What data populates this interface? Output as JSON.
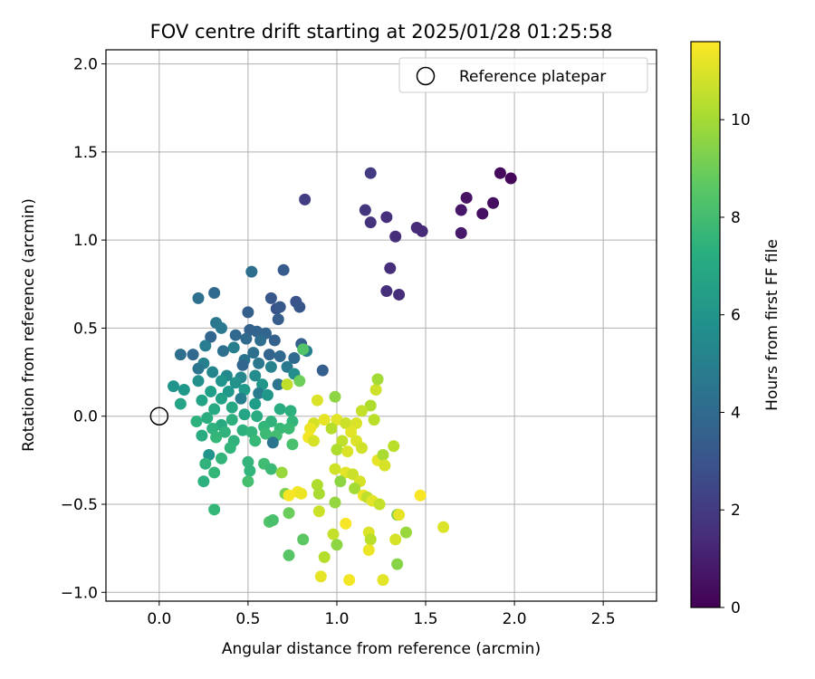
{
  "chart_data": {
    "type": "scatter",
    "title": "FOV centre drift starting at 2025/01/28 01:25:58",
    "xlabel": "Angular distance from reference (arcmin)",
    "ylabel": "Rotation from reference (arcmin)",
    "xlim": [
      -0.3,
      2.8
    ],
    "ylim": [
      -1.05,
      2.08
    ],
    "xticks": [
      0.0,
      0.5,
      1.0,
      1.5,
      2.0,
      2.5
    ],
    "xtick_labels": [
      "0.0",
      "0.5",
      "1.0",
      "1.5",
      "2.0",
      "2.5"
    ],
    "yticks": [
      -1.0,
      -0.5,
      0.0,
      0.5,
      1.0,
      1.5,
      2.0
    ],
    "ytick_labels": [
      "−1.0",
      "−0.5",
      "0.0",
      "0.5",
      "1.0",
      "1.5",
      "2.0"
    ],
    "grid": true,
    "legend": {
      "position": "top-right",
      "entries": [
        "Reference platepar"
      ]
    },
    "reference_point": {
      "x": 0.0,
      "y": 0.0,
      "marker": "open-circle",
      "label": "Reference platepar"
    },
    "colorbar": {
      "label": "Hours from first FF file",
      "colormap": "viridis",
      "range": [
        0,
        11.6
      ],
      "ticks": [
        0,
        2,
        4,
        6,
        8,
        10
      ],
      "tick_labels": [
        "0",
        "2",
        "4",
        "6",
        "8",
        "10"
      ]
    },
    "series": [
      {
        "name": "FOV centre",
        "points": [
          {
            "x": 1.92,
            "y": 1.38,
            "t": 0.3
          },
          {
            "x": 1.98,
            "y": 1.35,
            "t": 0.2
          },
          {
            "x": 1.88,
            "y": 1.21,
            "t": 0.4
          },
          {
            "x": 1.73,
            "y": 1.24,
            "t": 0.6
          },
          {
            "x": 1.82,
            "y": 1.15,
            "t": 0.5
          },
          {
            "x": 1.7,
            "y": 1.17,
            "t": 0.7
          },
          {
            "x": 1.7,
            "y": 1.04,
            "t": 0.8
          },
          {
            "x": 1.19,
            "y": 1.38,
            "t": 2.0
          },
          {
            "x": 0.82,
            "y": 1.23,
            "t": 2.1
          },
          {
            "x": 1.16,
            "y": 1.17,
            "t": 1.8
          },
          {
            "x": 1.28,
            "y": 1.13,
            "t": 1.6
          },
          {
            "x": 1.19,
            "y": 1.1,
            "t": 1.7
          },
          {
            "x": 1.45,
            "y": 1.07,
            "t": 1.4
          },
          {
            "x": 1.48,
            "y": 1.05,
            "t": 1.4
          },
          {
            "x": 1.33,
            "y": 1.02,
            "t": 1.5
          },
          {
            "x": 1.3,
            "y": 0.84,
            "t": 1.5
          },
          {
            "x": 1.28,
            "y": 0.71,
            "t": 1.6
          },
          {
            "x": 1.35,
            "y": 0.69,
            "t": 1.5
          },
          {
            "x": 0.52,
            "y": 0.82,
            "t": 4.2
          },
          {
            "x": 0.7,
            "y": 0.83,
            "t": 3.3
          },
          {
            "x": 0.22,
            "y": 0.67,
            "t": 4.3
          },
          {
            "x": 0.31,
            "y": 0.7,
            "t": 4.0
          },
          {
            "x": 0.63,
            "y": 0.67,
            "t": 3.2
          },
          {
            "x": 0.77,
            "y": 0.65,
            "t": 3.0
          },
          {
            "x": 0.79,
            "y": 0.62,
            "t": 3.1
          },
          {
            "x": 0.66,
            "y": 0.61,
            "t": 3.0
          },
          {
            "x": 0.68,
            "y": 0.62,
            "t": 3.2
          },
          {
            "x": 0.5,
            "y": 0.59,
            "t": 3.5
          },
          {
            "x": 0.67,
            "y": 0.55,
            "t": 3.4
          },
          {
            "x": 0.32,
            "y": 0.53,
            "t": 4.6
          },
          {
            "x": 0.35,
            "y": 0.5,
            "t": 4.7
          },
          {
            "x": 0.51,
            "y": 0.49,
            "t": 3.6
          },
          {
            "x": 0.55,
            "y": 0.48,
            "t": 3.7
          },
          {
            "x": 0.6,
            "y": 0.47,
            "t": 3.8
          },
          {
            "x": 0.43,
            "y": 0.46,
            "t": 3.9
          },
          {
            "x": 0.29,
            "y": 0.45,
            "t": 3.8
          },
          {
            "x": 0.49,
            "y": 0.44,
            "t": 4.0
          },
          {
            "x": 0.57,
            "y": 0.43,
            "t": 4.1
          },
          {
            "x": 0.65,
            "y": 0.43,
            "t": 3.6
          },
          {
            "x": 0.8,
            "y": 0.41,
            "t": 3.5
          },
          {
            "x": 0.26,
            "y": 0.4,
            "t": 4.9
          },
          {
            "x": 0.42,
            "y": 0.39,
            "t": 5.0
          },
          {
            "x": 0.12,
            "y": 0.35,
            "t": 4.2
          },
          {
            "x": 0.19,
            "y": 0.35,
            "t": 3.9
          },
          {
            "x": 0.36,
            "y": 0.37,
            "t": 4.2
          },
          {
            "x": 0.53,
            "y": 0.36,
            "t": 4.3
          },
          {
            "x": 0.62,
            "y": 0.35,
            "t": 3.7
          },
          {
            "x": 0.68,
            "y": 0.34,
            "t": 3.9
          },
          {
            "x": 0.76,
            "y": 0.33,
            "t": 4.0
          },
          {
            "x": 0.83,
            "y": 0.37,
            "t": 5.0
          },
          {
            "x": 0.48,
            "y": 0.32,
            "t": 4.4
          },
          {
            "x": 0.25,
            "y": 0.3,
            "t": 5.1
          },
          {
            "x": 0.22,
            "y": 0.27,
            "t": 4.5
          },
          {
            "x": 0.47,
            "y": 0.29,
            "t": 3.8
          },
          {
            "x": 0.56,
            "y": 0.3,
            "t": 4.6
          },
          {
            "x": 0.63,
            "y": 0.28,
            "t": 5.2
          },
          {
            "x": 0.72,
            "y": 0.28,
            "t": 4.7
          },
          {
            "x": 0.92,
            "y": 0.26,
            "t": 3.5
          },
          {
            "x": 0.3,
            "y": 0.25,
            "t": 5.3
          },
          {
            "x": 0.38,
            "y": 0.23,
            "t": 5.5
          },
          {
            "x": 0.46,
            "y": 0.22,
            "t": 5.4
          },
          {
            "x": 0.54,
            "y": 0.23,
            "t": 5.6
          },
          {
            "x": 0.76,
            "y": 0.24,
            "t": 5.7
          },
          {
            "x": 0.22,
            "y": 0.2,
            "t": 5.8
          },
          {
            "x": 0.35,
            "y": 0.2,
            "t": 6.0
          },
          {
            "x": 0.43,
            "y": 0.19,
            "t": 5.9
          },
          {
            "x": 0.58,
            "y": 0.18,
            "t": 6.1
          },
          {
            "x": 0.67,
            "y": 0.18,
            "t": 4.5
          },
          {
            "x": 0.08,
            "y": 0.17,
            "t": 6.0
          },
          {
            "x": 0.14,
            "y": 0.15,
            "t": 6.2
          },
          {
            "x": 0.29,
            "y": 0.14,
            "t": 6.5
          },
          {
            "x": 0.39,
            "y": 0.14,
            "t": 6.2
          },
          {
            "x": 0.48,
            "y": 0.15,
            "t": 6.3
          },
          {
            "x": 0.56,
            "y": 0.13,
            "t": 4.8
          },
          {
            "x": 0.61,
            "y": 0.12,
            "t": 6.1
          },
          {
            "x": 0.46,
            "y": 0.1,
            "t": 5.0
          },
          {
            "x": 0.35,
            "y": 0.1,
            "t": 6.6
          },
          {
            "x": 0.24,
            "y": 0.09,
            "t": 6.7
          },
          {
            "x": 0.12,
            "y": 0.07,
            "t": 6.8
          },
          {
            "x": 0.54,
            "y": 0.07,
            "t": 6.4
          },
          {
            "x": 0.41,
            "y": 0.05,
            "t": 6.9
          },
          {
            "x": 0.31,
            "y": 0.04,
            "t": 7.0
          },
          {
            "x": 0.68,
            "y": 0.04,
            "t": 7.1
          },
          {
            "x": 0.74,
            "y": 0.03,
            "t": 7.3
          },
          {
            "x": 0.48,
            "y": 0.01,
            "t": 6.8
          },
          {
            "x": 0.55,
            "y": 0.0,
            "t": 7.1
          },
          {
            "x": 0.27,
            "y": -0.01,
            "t": 7.2
          },
          {
            "x": 0.21,
            "y": -0.03,
            "t": 7.4
          },
          {
            "x": 0.41,
            "y": -0.02,
            "t": 7.3
          },
          {
            "x": 0.63,
            "y": -0.03,
            "t": 7.5
          },
          {
            "x": 0.75,
            "y": -0.03,
            "t": 7.6
          },
          {
            "x": 0.35,
            "y": -0.05,
            "t": 7.0
          },
          {
            "x": 0.59,
            "y": -0.06,
            "t": 7.7
          },
          {
            "x": 0.3,
            "y": -0.07,
            "t": 7.4
          },
          {
            "x": 0.47,
            "y": -0.08,
            "t": 7.3
          },
          {
            "x": 0.68,
            "y": -0.07,
            "t": 7.8
          },
          {
            "x": 0.73,
            "y": -0.07,
            "t": 7.9
          },
          {
            "x": 0.37,
            "y": -0.09,
            "t": 7.5
          },
          {
            "x": 0.52,
            "y": -0.09,
            "t": 7.6
          },
          {
            "x": 0.24,
            "y": -0.11,
            "t": 7.1
          },
          {
            "x": 0.6,
            "y": -0.1,
            "t": 7.9
          },
          {
            "x": 0.66,
            "y": -0.11,
            "t": 8.0
          },
          {
            "x": 0.32,
            "y": -0.12,
            "t": 7.7
          },
          {
            "x": 0.42,
            "y": -0.14,
            "t": 7.5
          },
          {
            "x": 0.54,
            "y": -0.14,
            "t": 7.8
          },
          {
            "x": 0.64,
            "y": -0.15,
            "t": 4.5
          },
          {
            "x": 0.75,
            "y": -0.16,
            "t": 8.2
          },
          {
            "x": 0.4,
            "y": -0.18,
            "t": 7.6
          },
          {
            "x": 0.28,
            "y": -0.22,
            "t": 6.0
          },
          {
            "x": 0.35,
            "y": -0.24,
            "t": 7.6
          },
          {
            "x": 0.26,
            "y": -0.27,
            "t": 7.5
          },
          {
            "x": 0.5,
            "y": -0.26,
            "t": 7.6
          },
          {
            "x": 0.59,
            "y": -0.27,
            "t": 8.0
          },
          {
            "x": 0.63,
            "y": -0.3,
            "t": 7.9
          },
          {
            "x": 0.31,
            "y": -0.32,
            "t": 7.7
          },
          {
            "x": 0.51,
            "y": -0.31,
            "t": 7.6
          },
          {
            "x": 0.25,
            "y": -0.37,
            "t": 7.3
          },
          {
            "x": 0.5,
            "y": -0.37,
            "t": 8.1
          },
          {
            "x": 0.31,
            "y": -0.53,
            "t": 7.7
          },
          {
            "x": 0.62,
            "y": -0.6,
            "t": 8.4
          },
          {
            "x": 0.64,
            "y": -0.59,
            "t": 8.2
          },
          {
            "x": 0.69,
            "y": -0.32,
            "t": 9.8
          },
          {
            "x": 0.71,
            "y": -0.44,
            "t": 9.3
          },
          {
            "x": 0.73,
            "y": -0.55,
            "t": 8.9
          },
          {
            "x": 0.73,
            "y": -0.79,
            "t": 8.5
          },
          {
            "x": 0.81,
            "y": -0.7,
            "t": 8.6
          },
          {
            "x": 0.72,
            "y": 0.18,
            "t": 10.5
          },
          {
            "x": 0.79,
            "y": 0.2,
            "t": 9.0
          },
          {
            "x": 0.81,
            "y": 0.38,
            "t": 8.4
          },
          {
            "x": 0.89,
            "y": 0.09,
            "t": 11.0
          },
          {
            "x": 0.99,
            "y": 0.11,
            "t": 9.6
          },
          {
            "x": 1.19,
            "y": 0.06,
            "t": 10.2
          },
          {
            "x": 1.22,
            "y": 0.15,
            "t": 10.8
          },
          {
            "x": 1.23,
            "y": 0.21,
            "t": 10.0
          },
          {
            "x": 1.14,
            "y": 0.03,
            "t": 10.6
          },
          {
            "x": 0.87,
            "y": -0.04,
            "t": 10.9
          },
          {
            "x": 0.93,
            "y": -0.02,
            "t": 11.2
          },
          {
            "x": 1.0,
            "y": -0.02,
            "t": 11.1
          },
          {
            "x": 1.05,
            "y": -0.04,
            "t": 10.7
          },
          {
            "x": 1.11,
            "y": -0.04,
            "t": 11.0
          },
          {
            "x": 1.21,
            "y": -0.02,
            "t": 10.4
          },
          {
            "x": 0.85,
            "y": -0.07,
            "t": 11.3
          },
          {
            "x": 0.97,
            "y": -0.07,
            "t": 10.3
          },
          {
            "x": 1.08,
            "y": -0.09,
            "t": 11.1
          },
          {
            "x": 0.84,
            "y": -0.12,
            "t": 11.4
          },
          {
            "x": 0.87,
            "y": -0.14,
            "t": 10.9
          },
          {
            "x": 1.03,
            "y": -0.14,
            "t": 10.5
          },
          {
            "x": 1.11,
            "y": -0.14,
            "t": 11.0
          },
          {
            "x": 1.0,
            "y": -0.19,
            "t": 10.2
          },
          {
            "x": 1.06,
            "y": -0.2,
            "t": 11.0
          },
          {
            "x": 1.14,
            "y": -0.18,
            "t": 10.8
          },
          {
            "x": 1.32,
            "y": -0.17,
            "t": 10.4
          },
          {
            "x": 1.23,
            "y": -0.25,
            "t": 11.2
          },
          {
            "x": 1.26,
            "y": -0.22,
            "t": 10.1
          },
          {
            "x": 1.27,
            "y": -0.28,
            "t": 10.9
          },
          {
            "x": 0.99,
            "y": -0.3,
            "t": 10.8
          },
          {
            "x": 1.05,
            "y": -0.32,
            "t": 11.1
          },
          {
            "x": 1.09,
            "y": -0.33,
            "t": 10.7
          },
          {
            "x": 1.13,
            "y": -0.37,
            "t": 10.9
          },
          {
            "x": 1.02,
            "y": -0.37,
            "t": 9.6
          },
          {
            "x": 0.89,
            "y": -0.39,
            "t": 10.2
          },
          {
            "x": 1.1,
            "y": -0.41,
            "t": 10.0
          },
          {
            "x": 0.78,
            "y": -0.43,
            "t": 11.4
          },
          {
            "x": 0.8,
            "y": -0.44,
            "t": 11.3
          },
          {
            "x": 0.73,
            "y": -0.45,
            "t": 11.5
          },
          {
            "x": 0.9,
            "y": -0.44,
            "t": 10.1
          },
          {
            "x": 1.15,
            "y": -0.45,
            "t": 11.3
          },
          {
            "x": 1.17,
            "y": -0.46,
            "t": 10.5
          },
          {
            "x": 1.2,
            "y": -0.48,
            "t": 11.1
          },
          {
            "x": 1.24,
            "y": -0.5,
            "t": 10.6
          },
          {
            "x": 0.99,
            "y": -0.49,
            "t": 9.7
          },
          {
            "x": 1.47,
            "y": -0.45,
            "t": 11.5
          },
          {
            "x": 0.9,
            "y": -0.54,
            "t": 10.7
          },
          {
            "x": 1.34,
            "y": -0.56,
            "t": 9.3
          },
          {
            "x": 1.35,
            "y": -0.56,
            "t": 11.2
          },
          {
            "x": 1.05,
            "y": -0.61,
            "t": 11.5
          },
          {
            "x": 1.6,
            "y": -0.63,
            "t": 11.0
          },
          {
            "x": 0.98,
            "y": -0.67,
            "t": 10.6
          },
          {
            "x": 1.18,
            "y": -0.66,
            "t": 11.0
          },
          {
            "x": 1.39,
            "y": -0.66,
            "t": 9.8
          },
          {
            "x": 1.0,
            "y": -0.73,
            "t": 9.6
          },
          {
            "x": 1.19,
            "y": -0.7,
            "t": 10.4
          },
          {
            "x": 1.33,
            "y": -0.7,
            "t": 10.9
          },
          {
            "x": 1.18,
            "y": -0.76,
            "t": 11.3
          },
          {
            "x": 0.93,
            "y": -0.8,
            "t": 10.3
          },
          {
            "x": 1.34,
            "y": -0.84,
            "t": 9.5
          },
          {
            "x": 0.91,
            "y": -0.91,
            "t": 11.2
          },
          {
            "x": 1.07,
            "y": -0.93,
            "t": 11.4
          },
          {
            "x": 1.26,
            "y": -0.93,
            "t": 11.1
          }
        ]
      }
    ]
  }
}
